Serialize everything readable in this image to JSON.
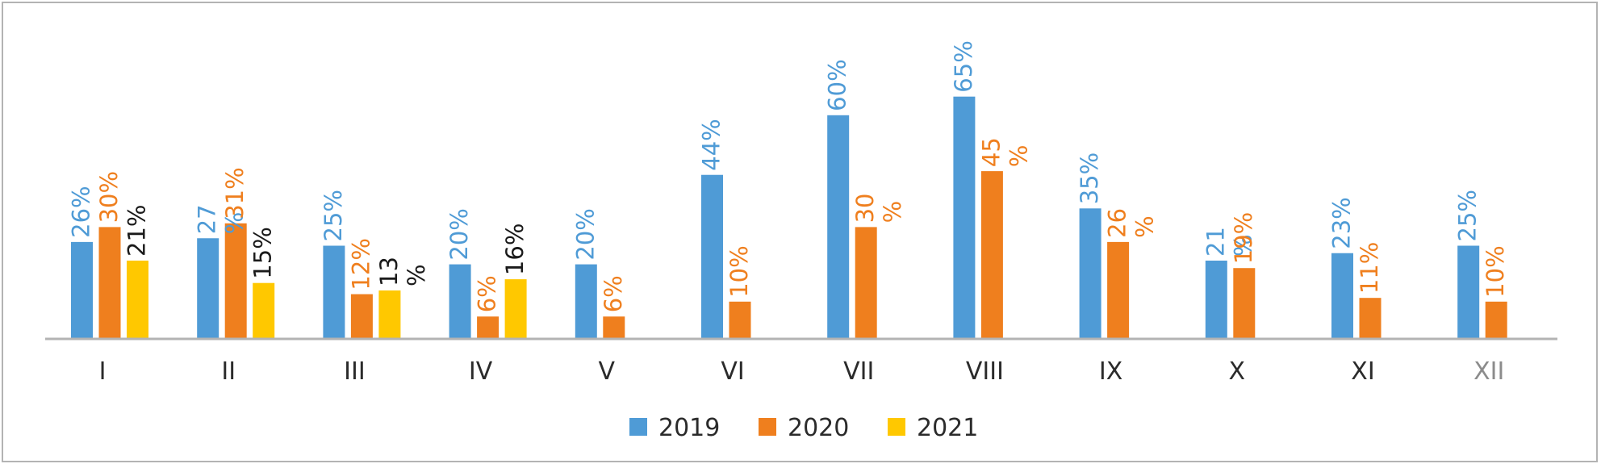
{
  "chart_data": {
    "type": "bar",
    "categories": [
      "I",
      "II",
      "III",
      "IV",
      "V",
      "VI",
      "VII",
      "VIII",
      "IX",
      "X",
      "XI",
      "XII"
    ],
    "series": [
      {
        "name": "2019",
        "color": "#4f9bd6",
        "values": [
          26,
          27,
          25,
          20,
          20,
          44,
          60,
          65,
          35,
          21,
          23,
          25
        ],
        "labels": [
          "26%",
          "27\n%",
          "25%",
          "20%",
          "20%",
          "44%",
          "60%",
          "65%",
          "35%",
          "21\n%",
          "23%",
          "25%"
        ]
      },
      {
        "name": "2020",
        "color": "#ef7f1e",
        "values": [
          30,
          31,
          12,
          6,
          6,
          10,
          30,
          45,
          26,
          19,
          11,
          10
        ],
        "labels": [
          "30%",
          "31%",
          "12%",
          "6%",
          "6%",
          "10%",
          "30\n%",
          "45\n%",
          "26\n%",
          "19%",
          "11%",
          "10%"
        ]
      },
      {
        "name": "2021",
        "color": "#ffc800",
        "label_color": "#1a1a1a",
        "values": [
          21,
          15,
          13,
          16,
          null,
          null,
          null,
          null,
          null,
          null,
          null,
          null
        ],
        "labels": [
          "21%",
          "15%",
          "13\n%",
          "16%",
          "",
          "",
          "",
          "",
          "",
          "",
          "",
          ""
        ]
      }
    ],
    "ylim": [
      0,
      70
    ],
    "grid": false,
    "legend_position": "bottom"
  }
}
